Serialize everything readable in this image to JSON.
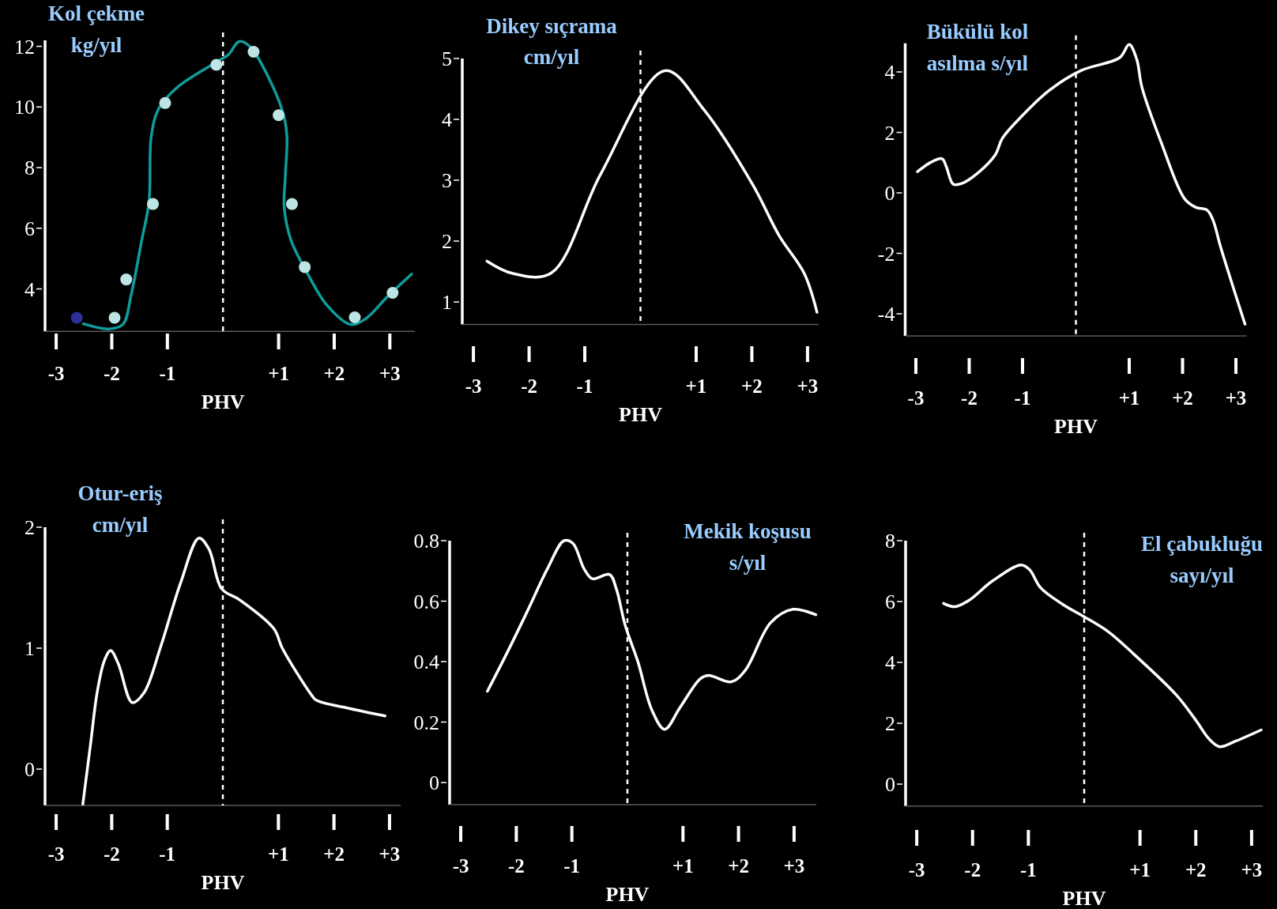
{
  "chart_data": [
    {
      "type": "line",
      "title": "Kol çekme",
      "subtitle": "kg/yıl",
      "xlabel": "PHV",
      "xlim": [
        -3.2,
        3.45
      ],
      "ylim": [
        2.6,
        12.2
      ],
      "xticks": [
        {
          "value": -3,
          "label": "-3"
        },
        {
          "value": -2,
          "label": "-2"
        },
        {
          "value": -1,
          "label": "-1"
        },
        {
          "value": 1,
          "label": "+1"
        },
        {
          "value": 2,
          "label": "+2"
        },
        {
          "value": 3,
          "label": "+3"
        }
      ],
      "yticks": [
        4,
        6,
        8,
        10,
        12
      ],
      "ref_lines": [
        {
          "axis": "x",
          "value": 0,
          "color": "#ffffff",
          "line_style": "dashed"
        }
      ],
      "series": [
        {
          "type": "line",
          "color": "#109c9c",
          "x": [
            -2.51,
            -2.05,
            -1.8,
            -1.65,
            -1.46,
            -1.33,
            -1.29,
            -1.16,
            -0.82,
            -0.09,
            0.1,
            0.29,
            0.48,
            0.88,
            1.1,
            1.15,
            1.12,
            1.1,
            1.22,
            1.51,
            1.87,
            2.29,
            2.56,
            2.95,
            3.39
          ],
          "values": [
            2.85,
            2.68,
            2.83,
            3.82,
            5.62,
            6.88,
            9.03,
            9.93,
            10.65,
            11.51,
            11.73,
            12.16,
            12.0,
            10.74,
            9.66,
            9.03,
            7.69,
            6.7,
            5.62,
            4.54,
            3.46,
            2.83,
            3.01,
            3.73,
            4.49
          ]
        },
        {
          "type": "scatter",
          "color": "#bde5e5",
          "marker": "circle",
          "x": [
            -1.95,
            -1.74,
            -1.26,
            -1.04,
            -0.12,
            0.55,
            1.0,
            1.24,
            1.47,
            2.37,
            3.05
          ],
          "values": [
            3.05,
            4.31,
            6.8,
            10.13,
            11.39,
            11.82,
            9.73,
            6.8,
            4.72,
            3.06,
            3.87
          ]
        },
        {
          "type": "scatter",
          "color": "#2e2e9a",
          "marker": "circle",
          "x": [
            -2.63
          ],
          "values": [
            3.05
          ]
        }
      ]
    },
    {
      "type": "line",
      "title": "Dikey sıçrama",
      "subtitle": "cm/yıl",
      "xlabel": "PHV",
      "xlim": [
        -3.2,
        3.2
      ],
      "ylim": [
        0.63,
        5
      ],
      "xticks": [
        {
          "value": -3,
          "label": "-3"
        },
        {
          "value": -2,
          "label": "-2"
        },
        {
          "value": -1,
          "label": "-1"
        },
        {
          "value": 1,
          "label": "+1"
        },
        {
          "value": 2,
          "label": "+2"
        },
        {
          "value": 3,
          "label": "+3"
        }
      ],
      "yticks": [
        1,
        2,
        3,
        4,
        5
      ],
      "ref_lines": [
        {
          "axis": "x",
          "value": 0,
          "color": "#ffffff",
          "line_style": "dashed"
        }
      ],
      "series": [
        {
          "type": "line",
          "color": "#ffffff",
          "x": [
            -2.755,
            -2.3,
            -1.61,
            -0.71,
            0.44,
            1.13,
            2.02,
            2.49,
            2.94,
            3.17
          ],
          "values": [
            1.67,
            1.47,
            1.47,
            3.11,
            4.8,
            4.17,
            2.92,
            2.09,
            1.47,
            0.83
          ]
        }
      ]
    },
    {
      "type": "line",
      "title": "Bükülü kol",
      "subtitle": "asılma s/yıl",
      "xlabel": "PHV",
      "xlim": [
        -3.2,
        3.2
      ],
      "ylim": [
        -4.73,
        4.95
      ],
      "xticks": [
        {
          "value": -3,
          "label": "-3"
        },
        {
          "value": -2,
          "label": "-2"
        },
        {
          "value": -1,
          "label": "-1"
        },
        {
          "value": 1,
          "label": "+1"
        },
        {
          "value": 2,
          "label": "+2"
        },
        {
          "value": 3,
          "label": "+3"
        }
      ],
      "yticks": [
        -4,
        -2,
        0,
        2,
        4
      ],
      "ref_lines": [
        {
          "axis": "x",
          "value": 0,
          "color": "#ffffff",
          "line_style": "dashed"
        }
      ],
      "series": [
        {
          "type": "line",
          "color": "#ffffff",
          "x": [
            -2.97,
            -2.72,
            -2.51,
            -2.43,
            -2.3,
            -2.14,
            -1.83,
            -1.51,
            -1.38,
            -1.03,
            -0.5,
            0.1,
            0.82,
            1.0,
            1.14,
            1.24,
            1.61,
            2.04,
            2.25,
            2.46,
            2.57,
            2.72,
            3.17
          ],
          "values": [
            0.7,
            1.01,
            1.13,
            0.87,
            0.29,
            0.31,
            0.67,
            1.26,
            1.8,
            2.51,
            3.39,
            4.05,
            4.47,
            4.91,
            4.42,
            3.48,
            1.62,
            -0.2,
            -0.48,
            -0.57,
            -0.9,
            -1.83,
            -4.34
          ]
        }
      ]
    },
    {
      "type": "line",
      "title": "Otur-eriş",
      "subtitle": "cm/yıl",
      "xlabel": "PHV",
      "xlim": [
        -3.2,
        3.2
      ],
      "ylim": [
        -0.3,
        2
      ],
      "xticks": [
        {
          "value": -3,
          "label": "-3"
        },
        {
          "value": -2,
          "label": "-2"
        },
        {
          "value": -1,
          "label": "-1"
        },
        {
          "value": 1,
          "label": "+1"
        },
        {
          "value": 2,
          "label": "+2"
        },
        {
          "value": 3,
          "label": "+3"
        }
      ],
      "yticks": [
        0,
        1,
        2
      ],
      "ref_lines": [
        {
          "axis": "x",
          "value": 0,
          "color": "#ffffff",
          "line_style": "dashed"
        }
      ],
      "series": [
        {
          "type": "line",
          "color": "#ffffff",
          "x": [
            -2.52,
            -2.38,
            -2.26,
            -2.13,
            -2.02,
            -1.88,
            -1.63,
            -1.42,
            -1.12,
            -0.76,
            -0.43,
            -0.25,
            -0.02,
            0.3,
            0.92,
            1.07,
            1.6,
            1.68,
            2.29,
            2.92
          ],
          "values": [
            -0.29,
            0.21,
            0.64,
            0.9,
            0.98,
            0.87,
            0.55,
            0.63,
            1.01,
            1.54,
            1.91,
            1.82,
            1.49,
            1.4,
            1.16,
            1.0,
            0.61,
            0.57,
            0.5,
            0.44
          ]
        }
      ]
    },
    {
      "type": "line",
      "title": "Mekik koşusu",
      "subtitle": "s/yıl",
      "xlabel": "PHV",
      "xlim": [
        -3.2,
        3.4
      ],
      "ylim": [
        -0.073,
        0.8
      ],
      "xticks": [
        {
          "value": -3,
          "label": "-3"
        },
        {
          "value": -2,
          "label": "-2"
        },
        {
          "value": -1,
          "label": "-1"
        },
        {
          "value": 1,
          "label": "+1"
        },
        {
          "value": 2,
          "label": "+2"
        },
        {
          "value": 3,
          "label": "+3"
        }
      ],
      "yticks": [
        0,
        0.2,
        0.4,
        0.6,
        0.8
      ],
      "ref_lines": [
        {
          "axis": "x",
          "value": 0,
          "color": "#ffffff",
          "line_style": "dashed"
        }
      ],
      "series": [
        {
          "type": "line",
          "color": "#ffffff",
          "x": [
            -2.52,
            -2.15,
            -1.8,
            -1.44,
            -1.14,
            -0.98,
            -0.78,
            -0.63,
            -0.32,
            -0.2,
            -0.04,
            0.19,
            0.44,
            0.67,
            0.95,
            1.31,
            1.46,
            1.87,
            2.12,
            2.58,
            2.98,
            3.39
          ],
          "values": [
            0.302,
            0.435,
            0.567,
            0.707,
            0.8,
            0.791,
            0.707,
            0.674,
            0.688,
            0.641,
            0.52,
            0.399,
            0.24,
            0.176,
            0.249,
            0.343,
            0.354,
            0.333,
            0.371,
            0.529,
            0.573,
            0.555
          ]
        }
      ]
    },
    {
      "type": "line",
      "title": "El çabukluğu",
      "subtitle": "sayı/yıl",
      "xlabel": "PHV",
      "xlim": [
        -3.2,
        3.2
      ],
      "ylim": [
        -0.72,
        8
      ],
      "xticks": [
        {
          "value": -3,
          "label": "-3"
        },
        {
          "value": -2,
          "label": "-2"
        },
        {
          "value": -1,
          "label": "-1"
        },
        {
          "value": 1,
          "label": "+1"
        },
        {
          "value": 2,
          "label": "+2"
        },
        {
          "value": 3,
          "label": "+3"
        }
      ],
      "yticks": [
        0,
        2,
        4,
        6,
        8
      ],
      "ref_lines": [
        {
          "axis": "x",
          "value": 0,
          "color": "#ffffff",
          "line_style": "dashed"
        }
      ],
      "series": [
        {
          "type": "line",
          "color": "#ffffff",
          "x": [
            -2.52,
            -2.32,
            -2.07,
            -1.64,
            -1.13,
            -0.98,
            -0.78,
            -0.37,
            -0.02,
            0.43,
            0.89,
            1.65,
            2.0,
            2.25,
            2.43,
            2.71,
            3.17
          ],
          "values": [
            5.94,
            5.83,
            6.03,
            6.68,
            7.2,
            7.05,
            6.45,
            5.89,
            5.52,
            5.01,
            4.27,
            2.93,
            2.1,
            1.46,
            1.23,
            1.41,
            1.78
          ]
        }
      ]
    }
  ]
}
